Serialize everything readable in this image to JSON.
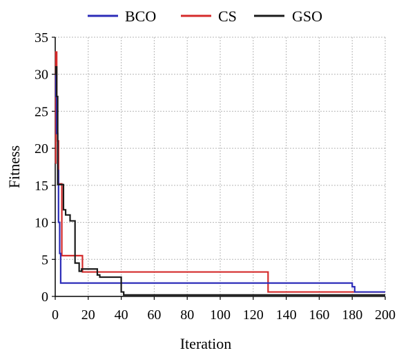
{
  "chart_data": {
    "type": "line",
    "title": "",
    "xlabel": "Iteration",
    "ylabel": "Fitness",
    "xlim": [
      0,
      200
    ],
    "ylim": [
      0,
      35
    ],
    "xticks": [
      0,
      20,
      40,
      60,
      80,
      100,
      120,
      140,
      160,
      180,
      200
    ],
    "yticks": [
      0,
      5,
      10,
      15,
      20,
      25,
      30,
      35
    ],
    "grid": true,
    "legend_position": "top",
    "series": [
      {
        "name": "BCO",
        "color": "#2b2bb8",
        "points": [
          [
            0,
            30
          ],
          [
            0.4,
            30
          ],
          [
            0.4,
            27
          ],
          [
            0.8,
            27
          ],
          [
            0.8,
            22
          ],
          [
            1.5,
            22
          ],
          [
            1.5,
            17
          ],
          [
            2,
            17
          ],
          [
            2,
            10
          ],
          [
            2.7,
            10
          ],
          [
            2.7,
            5.8
          ],
          [
            3.3,
            5.8
          ],
          [
            3.3,
            1.8
          ],
          [
            180,
            1.8
          ],
          [
            180,
            1.3
          ],
          [
            181.5,
            1.3
          ],
          [
            181.5,
            0.6
          ],
          [
            200,
            0.6
          ]
        ]
      },
      {
        "name": "CS",
        "color": "#d42a2a",
        "points": [
          [
            0,
            18
          ],
          [
            0.3,
            18
          ],
          [
            0.3,
            33
          ],
          [
            0.9,
            33
          ],
          [
            0.9,
            26
          ],
          [
            1.4,
            26
          ],
          [
            1.4,
            21
          ],
          [
            2,
            21
          ],
          [
            2,
            15.2
          ],
          [
            4,
            15.2
          ],
          [
            4,
            5.5
          ],
          [
            16.5,
            5.5
          ],
          [
            16.5,
            3.3
          ],
          [
            129,
            3.3
          ],
          [
            129,
            0.6
          ],
          [
            200,
            0.6
          ]
        ]
      },
      {
        "name": "GSO",
        "color": "#1a1a1a",
        "points": [
          [
            0,
            30
          ],
          [
            0.4,
            30
          ],
          [
            0.4,
            31
          ],
          [
            0.9,
            31
          ],
          [
            0.9,
            27
          ],
          [
            1.5,
            27
          ],
          [
            1.5,
            15.1
          ],
          [
            5,
            15.1
          ],
          [
            5,
            11.7
          ],
          [
            6.3,
            11.7
          ],
          [
            6.3,
            11
          ],
          [
            9,
            11
          ],
          [
            9,
            10.2
          ],
          [
            12,
            10.2
          ],
          [
            12,
            4.5
          ],
          [
            14.5,
            4.5
          ],
          [
            14.5,
            3.4
          ],
          [
            16,
            3.4
          ],
          [
            16,
            3.7
          ],
          [
            25.5,
            3.7
          ],
          [
            25.5,
            2.9
          ],
          [
            27,
            2.9
          ],
          [
            27,
            2.6
          ],
          [
            40,
            2.6
          ],
          [
            40,
            0.6
          ],
          [
            41.5,
            0.6
          ],
          [
            41.5,
            0.2
          ],
          [
            200,
            0.2
          ]
        ]
      }
    ]
  }
}
